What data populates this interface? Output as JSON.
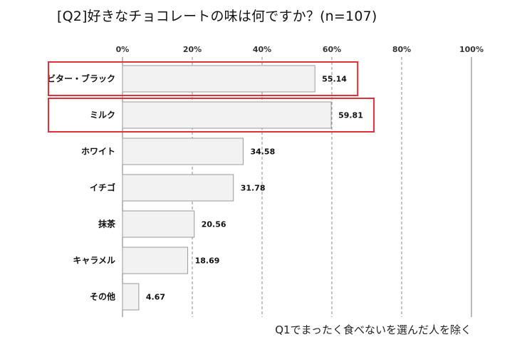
{
  "chart_data": {
    "type": "bar",
    "orientation": "horizontal",
    "title": "[Q2]好きなチョコレートの味は何ですか？(n=107)",
    "note": "Q1でまったく食べないを選んだ人を除く",
    "categories": [
      "ビター・ブラック",
      "ミルク",
      "ホワイト",
      "イチゴ",
      "抹茶",
      "キャラメル",
      "その他"
    ],
    "values": [
      55.14,
      59.81,
      34.58,
      31.78,
      20.56,
      18.69,
      4.67
    ],
    "value_labels": [
      "55.14",
      "59.81",
      "34.58",
      "31.78",
      "20.56",
      "18.69",
      "4.67"
    ],
    "highlighted": [
      "ビター・ブラック",
      "ミルク"
    ],
    "xlim": [
      0,
      100
    ],
    "xticks": [
      0,
      20,
      40,
      60,
      80,
      100
    ],
    "xtick_labels": [
      "0%",
      "20%",
      "40%",
      "60%",
      "80%",
      "100%"
    ],
    "grid": "vertical dashed",
    "legend": "none",
    "colors": {
      "bar_fill": "#f2f2f2",
      "bar_stroke": "#9a9a9a",
      "highlight_box": "#e0303a",
      "grid": "#888888"
    }
  }
}
